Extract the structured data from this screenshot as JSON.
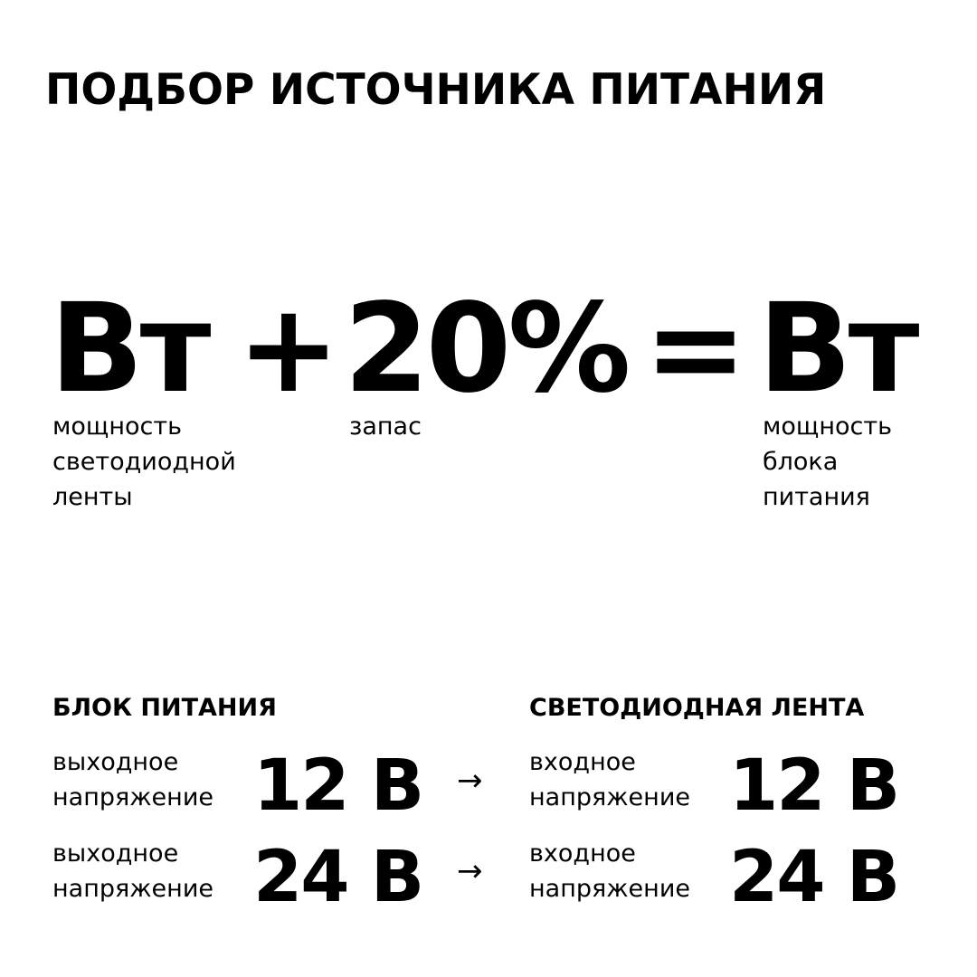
{
  "title": "ПОДБОР ИСТОЧНИКА ПИТАНИЯ",
  "formula": {
    "term1": "Вт",
    "plus": "+",
    "term2": "20%",
    "equals": "=",
    "result": "Вт",
    "term1_label": [
      "мощность",
      "светодиодной",
      "ленты"
    ],
    "term2_label": [
      "запас"
    ],
    "result_label": [
      "мощность",
      "блока",
      "питания"
    ]
  },
  "compat": {
    "left_header": "БЛОК ПИТАНИЯ",
    "right_header": "СВЕТОДИОДНАЯ ЛЕНТА",
    "arrow_icon": "arrow-right-icon",
    "rows": [
      {
        "left_label": [
          "выходное",
          "напряжение"
        ],
        "left_value": "12 В",
        "right_label": [
          "входное",
          "напряжение"
        ],
        "right_value": "12 В"
      },
      {
        "left_label": [
          "выходное",
          "напряжение"
        ],
        "left_value": "24 В",
        "right_label": [
          "входное",
          "напряжение"
        ],
        "right_value": "24 В"
      }
    ]
  }
}
